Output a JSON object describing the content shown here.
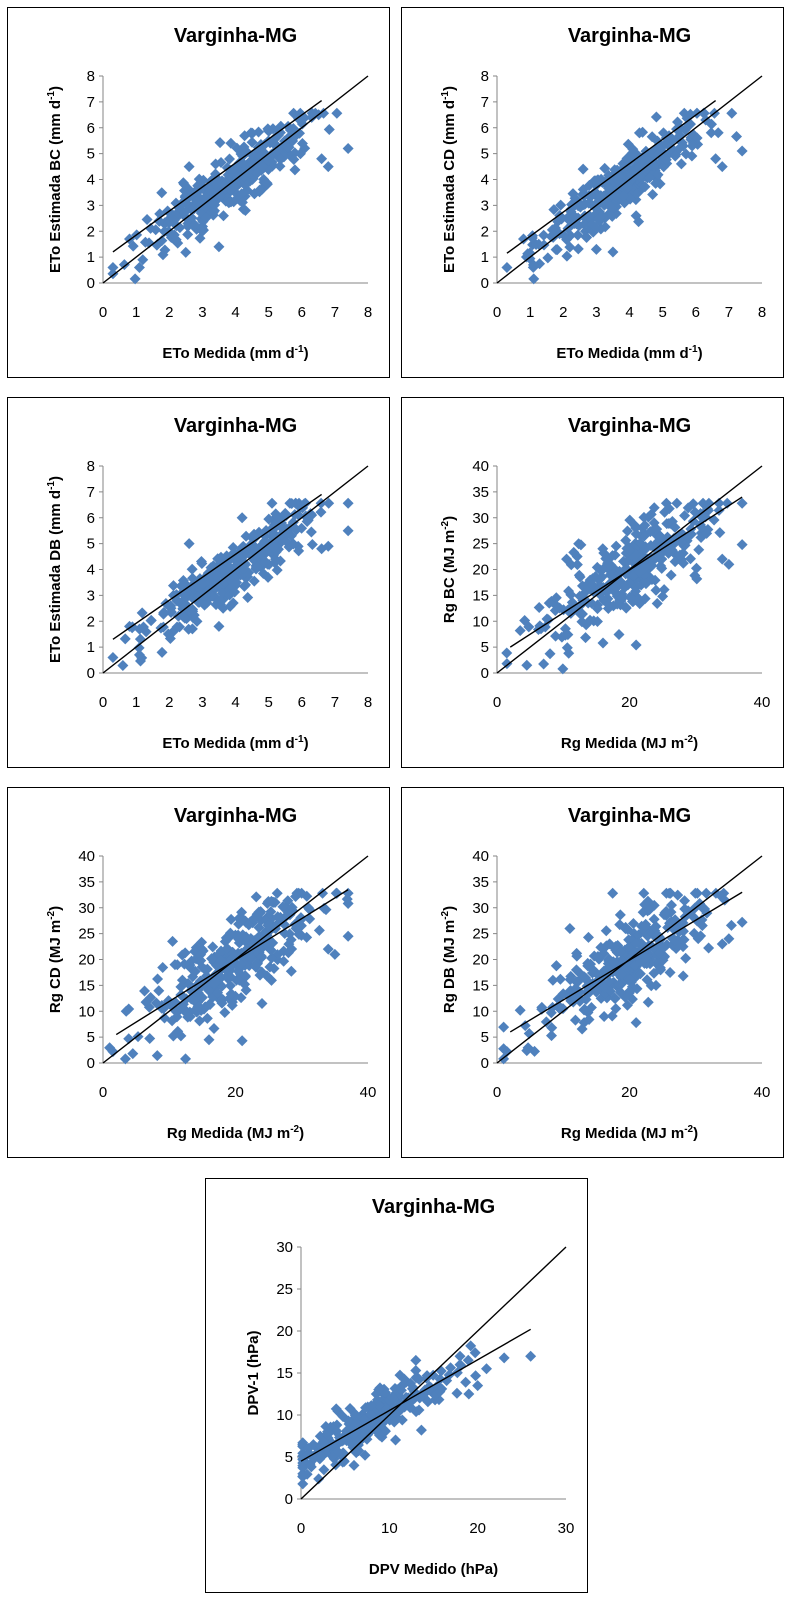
{
  "chart_data": [
    {
      "type": "scatter",
      "title": "Varginha-MG",
      "xlabel": "ETo Medida (mm d-1)",
      "ylabel": "ETo Estimada BC (mm d-1)",
      "xlabel_base": "ETo Medida (mm d",
      "xlabel_sup": "-1",
      "xlabel_end": ")",
      "ylabel_base": "ETo Estimada BC (mm d",
      "ylabel_sup": "-1",
      "ylabel_end": ")",
      "xlim": [
        0,
        8
      ],
      "ylim": [
        0,
        8
      ],
      "xticks": [
        0,
        1,
        2,
        3,
        4,
        5,
        6,
        7,
        8
      ],
      "yticks": [
        0,
        1,
        2,
        3,
        4,
        5,
        6,
        7,
        8
      ],
      "one_to_one_line": true,
      "trendline": [
        [
          0.3,
          1.2
        ],
        [
          6.6,
          7.05
        ]
      ],
      "point_color": "#4f81bd",
      "cloud": {
        "xmin": 0.3,
        "xmax": 7.4,
        "slope": 0.92,
        "intercept": 0.35,
        "spread": 0.55,
        "center": 3.9,
        "sd": 1.25,
        "n": 360
      },
      "points": [
        [
          0.3,
          0.6
        ],
        [
          1.1,
          0.6
        ],
        [
          1.2,
          0.9
        ],
        [
          0.8,
          1.7
        ],
        [
          3.5,
          1.4
        ],
        [
          2.6,
          4.5
        ],
        [
          3.4,
          4.6
        ],
        [
          6.6,
          4.8
        ],
        [
          6.8,
          4.5
        ],
        [
          7.4,
          5.2
        ],
        [
          6.3,
          6.4
        ],
        [
          5.0,
          5.9
        ],
        [
          4.3,
          2.8
        ],
        [
          3.0,
          2.0
        ],
        [
          3.8,
          3.1
        ]
      ]
    },
    {
      "type": "scatter",
      "title": "Varginha-MG",
      "xlabel": "ETo Medida (mm d-1)",
      "ylabel": "ETo Estimada CD (mm d-1)",
      "xlabel_base": "ETo Medida (mm d",
      "xlabel_sup": "-1",
      "xlabel_end": ")",
      "ylabel_base": "ETo Estimada CD (mm d",
      "ylabel_sup": "-1",
      "ylabel_end": ")",
      "xlim": [
        0,
        8
      ],
      "ylim": [
        0,
        8
      ],
      "xticks": [
        0,
        1,
        2,
        3,
        4,
        5,
        6,
        7,
        8
      ],
      "yticks": [
        0,
        1,
        2,
        3,
        4,
        5,
        6,
        7,
        8
      ],
      "one_to_one_line": true,
      "trendline": [
        [
          0.3,
          1.15
        ],
        [
          6.6,
          7.05
        ]
      ],
      "point_color": "#4f81bd",
      "cloud": {
        "xmin": 0.3,
        "xmax": 7.4,
        "slope": 0.92,
        "intercept": 0.3,
        "spread": 0.55,
        "center": 3.9,
        "sd": 1.25,
        "n": 360
      },
      "points": [
        [
          0.3,
          0.6
        ],
        [
          1.1,
          0.7
        ],
        [
          0.8,
          1.7
        ],
        [
          3.5,
          1.2
        ],
        [
          2.6,
          4.4
        ],
        [
          4.3,
          5.8
        ],
        [
          6.6,
          4.8
        ],
        [
          6.8,
          4.5
        ],
        [
          7.4,
          5.1
        ],
        [
          6.3,
          6.3
        ],
        [
          3.0,
          1.3
        ],
        [
          4.2,
          2.6
        ]
      ]
    },
    {
      "type": "scatter",
      "title": "Varginha-MG",
      "xlabel": "ETo Medida (mm d-1)",
      "ylabel": "ETo Estimada DB (mm d-1)",
      "xlabel_base": "ETo Medida (mm d",
      "xlabel_sup": "-1",
      "xlabel_end": ")",
      "ylabel_base": "ETo Estimada DB (mm d",
      "ylabel_sup": "-1",
      "ylabel_end": ")",
      "xlim": [
        0,
        8
      ],
      "ylim": [
        0,
        8
      ],
      "xticks": [
        0,
        1,
        2,
        3,
        4,
        5,
        6,
        7,
        8
      ],
      "yticks": [
        0,
        1,
        2,
        3,
        4,
        5,
        6,
        7,
        8
      ],
      "one_to_one_line": true,
      "trendline": [
        [
          0.3,
          1.3
        ],
        [
          6.6,
          6.9
        ]
      ],
      "point_color": "#4f81bd",
      "cloud": {
        "xmin": 0.3,
        "xmax": 7.4,
        "slope": 0.9,
        "intercept": 0.45,
        "spread": 0.5,
        "center": 3.9,
        "sd": 1.25,
        "n": 360
      },
      "points": [
        [
          0.3,
          0.6
        ],
        [
          1.1,
          0.7
        ],
        [
          0.8,
          1.8
        ],
        [
          3.5,
          1.8
        ],
        [
          2.6,
          5.0
        ],
        [
          4.2,
          6.0
        ],
        [
          6.6,
          4.8
        ],
        [
          6.8,
          4.9
        ],
        [
          7.4,
          5.5
        ],
        [
          6.3,
          6.1
        ]
      ]
    },
    {
      "type": "scatter",
      "title": "Varginha-MG",
      "xlabel": "Rg Medida (MJ m-2)",
      "ylabel": "Rg BC (MJ m-2)",
      "xlabel_base": "Rg Medida  (MJ  m",
      "xlabel_sup": "-2",
      "xlabel_end": ")",
      "ylabel_base": "Rg BC (MJ m",
      "ylabel_sup": "-2",
      "ylabel_end": ")",
      "xlim": [
        0,
        40
      ],
      "ylim": [
        0,
        40
      ],
      "xticks": [
        0,
        20,
        40
      ],
      "yticks": [
        0,
        5,
        10,
        15,
        20,
        25,
        30,
        35,
        40
      ],
      "one_to_one_line": true,
      "trendline": [
        [
          2,
          5
        ],
        [
          37,
          34
        ]
      ],
      "point_color": "#4f81bd",
      "cloud": {
        "xmin": 1,
        "xmax": 37,
        "slope": 0.85,
        "intercept": 3.0,
        "spread": 4.0,
        "center": 20,
        "sd": 6.5,
        "n": 330
      },
      "points": [
        [
          1.5,
          1.8
        ],
        [
          4.5,
          1.5
        ],
        [
          3.5,
          8.2
        ],
        [
          10.5,
          22
        ],
        [
          16,
          5.8
        ],
        [
          21,
          5.4
        ],
        [
          34,
          22
        ],
        [
          35,
          21
        ],
        [
          37,
          24.8
        ],
        [
          31,
          30
        ],
        [
          25,
          14.8
        ],
        [
          24,
          16
        ]
      ]
    },
    {
      "type": "scatter",
      "title": "Varginha-MG",
      "xlabel": "Rg Medida (MJ m-2)",
      "ylabel": "Rg CD (MJ m-2)",
      "xlabel_base": "Rg Medida  (MJ  m",
      "xlabel_sup": "-2",
      "xlabel_end": ")",
      "ylabel_base": "Rg CD (MJ m",
      "ylabel_sup": "-2",
      "ylabel_end": ")",
      "xlim": [
        0,
        40
      ],
      "ylim": [
        0,
        40
      ],
      "xticks": [
        0,
        20,
        40
      ],
      "yticks": [
        0,
        5,
        10,
        15,
        20,
        25,
        30,
        35,
        40
      ],
      "one_to_one_line": true,
      "trendline": [
        [
          2,
          5.5
        ],
        [
          37,
          33.5
        ]
      ],
      "point_color": "#4f81bd",
      "cloud": {
        "xmin": 1,
        "xmax": 37,
        "slope": 0.82,
        "intercept": 3.5,
        "spread": 4.0,
        "center": 20,
        "sd": 6.5,
        "n": 330
      },
      "points": [
        [
          1.5,
          2.2
        ],
        [
          4.5,
          1.8
        ],
        [
          3.5,
          10
        ],
        [
          10.5,
          23.5
        ],
        [
          16,
          4.5
        ],
        [
          21,
          4.3
        ],
        [
          34,
          22
        ],
        [
          35,
          21
        ],
        [
          37,
          24.5
        ],
        [
          31,
          30
        ],
        [
          24,
          11.5
        ]
      ]
    },
    {
      "type": "scatter",
      "title": "Varginha-MG",
      "xlabel": "Rg Medida (MJ m-2)",
      "ylabel": "Rg DB (MJ m-2)",
      "xlabel_base": "Rg Medida  (MJ  m",
      "xlabel_sup": "-2",
      "xlabel_end": ")",
      "ylabel_base": "Rg DB (MJ m",
      "ylabel_sup": "-2",
      "ylabel_end": ")",
      "xlim": [
        0,
        40
      ],
      "ylim": [
        0,
        40
      ],
      "xticks": [
        0,
        20,
        40
      ],
      "yticks": [
        0,
        5,
        10,
        15,
        20,
        25,
        30,
        35,
        40
      ],
      "one_to_one_line": true,
      "trendline": [
        [
          2,
          6
        ],
        [
          37,
          33
        ]
      ],
      "point_color": "#4f81bd",
      "cloud": {
        "xmin": 1,
        "xmax": 37,
        "slope": 0.8,
        "intercept": 4.0,
        "spread": 4.0,
        "center": 20,
        "sd": 6.5,
        "n": 330
      },
      "points": [
        [
          1.5,
          2.2
        ],
        [
          4.5,
          2.4
        ],
        [
          3.5,
          10.2
        ],
        [
          11,
          26
        ],
        [
          21,
          7.8
        ],
        [
          34,
          23
        ],
        [
          35,
          24
        ],
        [
          37,
          27.2
        ],
        [
          31,
          30
        ],
        [
          24,
          15
        ]
      ]
    },
    {
      "type": "scatter",
      "title": "Varginha-MG",
      "xlabel": "DPV Medido (hPa)",
      "ylabel": "DPV-1 (hPa)",
      "xlabel_base": "DPV  Medido (hPa)",
      "xlabel_sup": "",
      "xlabel_end": "",
      "ylabel_base": "DPV-1 (hPa)",
      "ylabel_sup": "",
      "ylabel_end": "",
      "xlim": [
        0,
        30
      ],
      "ylim": [
        0,
        30
      ],
      "xticks": [
        0,
        10,
        20,
        30
      ],
      "yticks": [
        0,
        5,
        10,
        15,
        20,
        25,
        30
      ],
      "one_to_one_line": true,
      "trendline": [
        [
          0,
          4.5
        ],
        [
          26,
          20.2
        ]
      ],
      "point_color": "#4f81bd",
      "cloud": {
        "xmin": 0.2,
        "xmax": 26,
        "slope": 0.62,
        "intercept": 4.5,
        "spread": 1.5,
        "center": 8,
        "sd": 4.5,
        "n": 300
      },
      "points": [
        [
          0.2,
          1.8
        ],
        [
          2,
          2.4
        ],
        [
          3,
          8
        ],
        [
          13,
          16.5
        ],
        [
          18,
          17
        ],
        [
          19,
          12.5
        ],
        [
          20,
          13.5
        ],
        [
          21,
          15.5
        ],
        [
          23,
          16.8
        ],
        [
          26,
          17
        ],
        [
          18,
          16
        ],
        [
          6,
          4
        ]
      ]
    }
  ]
}
